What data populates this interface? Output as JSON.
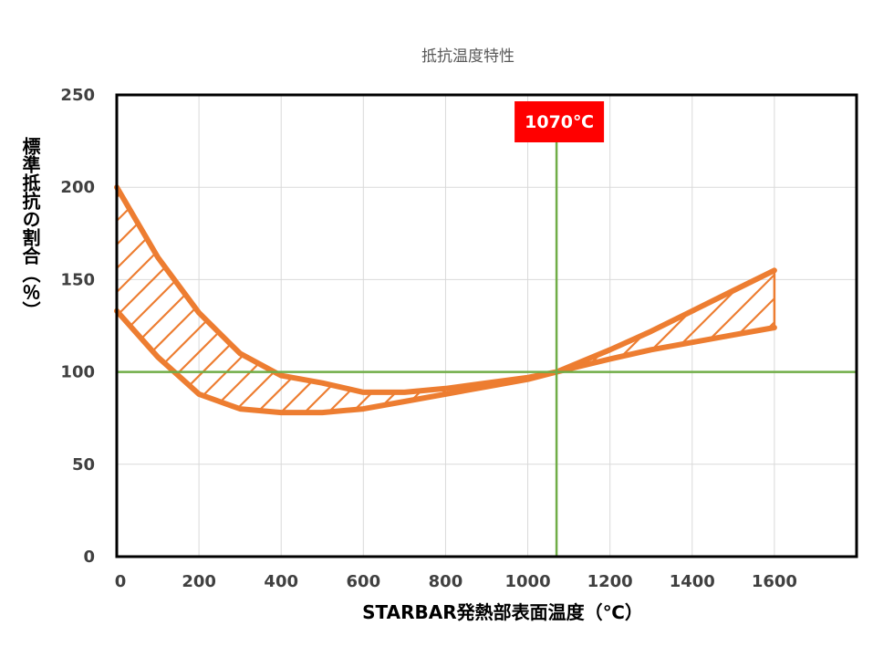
{
  "chart_data": {
    "type": "area",
    "title": "抵抗温度特性",
    "xlabel": "STARBAR発熱部表面温度（℃）",
    "ylabel": "標準抵抗の割合（％）",
    "xlim": [
      0,
      1800
    ],
    "ylim": [
      0,
      250
    ],
    "x_ticks": [
      0,
      200,
      400,
      600,
      800,
      1000,
      1200,
      1400,
      1600
    ],
    "y_ticks": [
      0,
      50,
      100,
      150,
      200,
      250
    ],
    "grid": true,
    "band_fill": "hatched",
    "series": [
      {
        "x": [
          0,
          100,
          200,
          300,
          400,
          500,
          600,
          700,
          800,
          900,
          1000,
          1070,
          1200,
          1300,
          1400,
          1500,
          1600
        ],
        "values": [
          200,
          162,
          132,
          110,
          98,
          94,
          89,
          89,
          91,
          94,
          97,
          100,
          112,
          122,
          133,
          144,
          155
        ]
      },
      {
        "x": [
          0,
          100,
          200,
          300,
          400,
          500,
          600,
          700,
          800,
          900,
          1000,
          1070,
          1200,
          1300,
          1400,
          1500,
          1600
        ],
        "values": [
          133,
          108,
          88,
          80,
          78,
          78,
          80,
          84,
          88,
          92,
          96,
          100,
          107,
          112,
          116,
          120,
          124
        ]
      }
    ],
    "reference_lines": {
      "vertical_x": 1070,
      "vertical_label": "1070℃",
      "horizontal_y": 100
    },
    "colors": {
      "band": "#ed7d31",
      "reference": "#70ad47",
      "marker_bg": "#ff0000",
      "grid": "#d9d9d9",
      "frame": "#000000"
    }
  }
}
